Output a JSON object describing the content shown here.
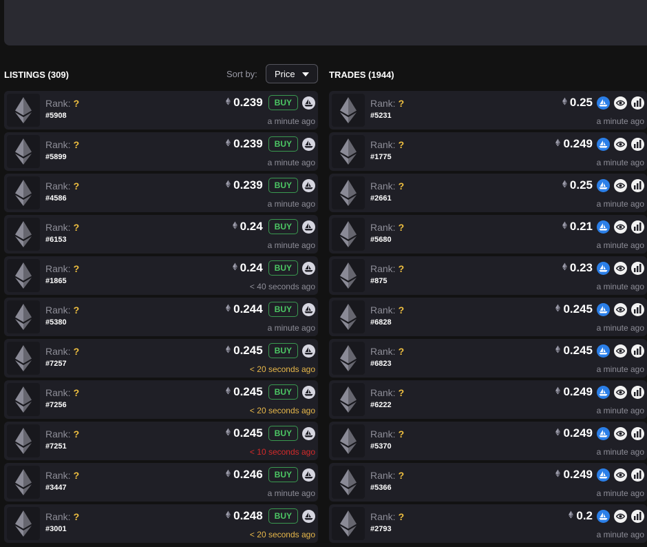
{
  "listings": {
    "title": "LISTINGS (309)",
    "sort_label": "Sort by:",
    "sort_value": "Price",
    "buy_label": "BUY",
    "items": [
      {
        "rank_label": "Rank:",
        "rank_value": "?",
        "id": "#5908",
        "price": "0.239",
        "time": "a minute ago",
        "time_status": "normal"
      },
      {
        "rank_label": "Rank:",
        "rank_value": "?",
        "id": "#5899",
        "price": "0.239",
        "time": "a minute ago",
        "time_status": "normal"
      },
      {
        "rank_label": "Rank:",
        "rank_value": "?",
        "id": "#4586",
        "price": "0.239",
        "time": "a minute ago",
        "time_status": "normal"
      },
      {
        "rank_label": "Rank:",
        "rank_value": "?",
        "id": "#6153",
        "price": "0.24",
        "time": "a minute ago",
        "time_status": "normal"
      },
      {
        "rank_label": "Rank:",
        "rank_value": "?",
        "id": "#1865",
        "price": "0.24",
        "time": "< 40 seconds ago",
        "time_status": "normal"
      },
      {
        "rank_label": "Rank:",
        "rank_value": "?",
        "id": "#5380",
        "price": "0.244",
        "time": "a minute ago",
        "time_status": "normal"
      },
      {
        "rank_label": "Rank:",
        "rank_value": "?",
        "id": "#7257",
        "price": "0.245",
        "time": "< 20 seconds ago",
        "time_status": "warn"
      },
      {
        "rank_label": "Rank:",
        "rank_value": "?",
        "id": "#7256",
        "price": "0.245",
        "time": "< 20 seconds ago",
        "time_status": "warn"
      },
      {
        "rank_label": "Rank:",
        "rank_value": "?",
        "id": "#7251",
        "price": "0.245",
        "time": "< 10 seconds ago",
        "time_status": "alert"
      },
      {
        "rank_label": "Rank:",
        "rank_value": "?",
        "id": "#3447",
        "price": "0.246",
        "time": "a minute ago",
        "time_status": "normal"
      },
      {
        "rank_label": "Rank:",
        "rank_value": "?",
        "id": "#3001",
        "price": "0.248",
        "time": "< 20 seconds ago",
        "time_status": "warn"
      }
    ]
  },
  "trades": {
    "title": "TRADES (1944)",
    "items": [
      {
        "rank_label": "Rank:",
        "rank_value": "?",
        "id": "#5231",
        "price": "0.25",
        "time": "a minute ago"
      },
      {
        "rank_label": "Rank:",
        "rank_value": "?",
        "id": "#1775",
        "price": "0.249",
        "time": "a minute ago"
      },
      {
        "rank_label": "Rank:",
        "rank_value": "?",
        "id": "#2661",
        "price": "0.25",
        "time": "a minute ago"
      },
      {
        "rank_label": "Rank:",
        "rank_value": "?",
        "id": "#5680",
        "price": "0.21",
        "time": "a minute ago"
      },
      {
        "rank_label": "Rank:",
        "rank_value": "?",
        "id": "#875",
        "price": "0.23",
        "time": "a minute ago"
      },
      {
        "rank_label": "Rank:",
        "rank_value": "?",
        "id": "#6828",
        "price": "0.245",
        "time": "a minute ago"
      },
      {
        "rank_label": "Rank:",
        "rank_value": "?",
        "id": "#6823",
        "price": "0.245",
        "time": "a minute ago"
      },
      {
        "rank_label": "Rank:",
        "rank_value": "?",
        "id": "#6222",
        "price": "0.249",
        "time": "a minute ago"
      },
      {
        "rank_label": "Rank:",
        "rank_value": "?",
        "id": "#5370",
        "price": "0.249",
        "time": "a minute ago"
      },
      {
        "rank_label": "Rank:",
        "rank_value": "?",
        "id": "#5366",
        "price": "0.249",
        "time": "a minute ago"
      },
      {
        "rank_label": "Rank:",
        "rank_value": "?",
        "id": "#2793",
        "price": "0.2",
        "time": "a minute ago"
      }
    ]
  },
  "icons": {
    "thumbnail": "ethereum-icon",
    "price_currency": "ethereum-icon",
    "listing_marketplace": "opensea-icon",
    "trade_marketplace": "opensea-icon",
    "trade_view": "eye-icon",
    "trade_chart": "chart-icon"
  },
  "colors": {
    "background": "#121212",
    "row": "#1f1f26",
    "buy": "#4cc764",
    "rank_value": "#f0c040",
    "time_warn": "#e8b84a",
    "time_alert": "#d42a2a",
    "opensea_blue": "#2b7fe8"
  }
}
